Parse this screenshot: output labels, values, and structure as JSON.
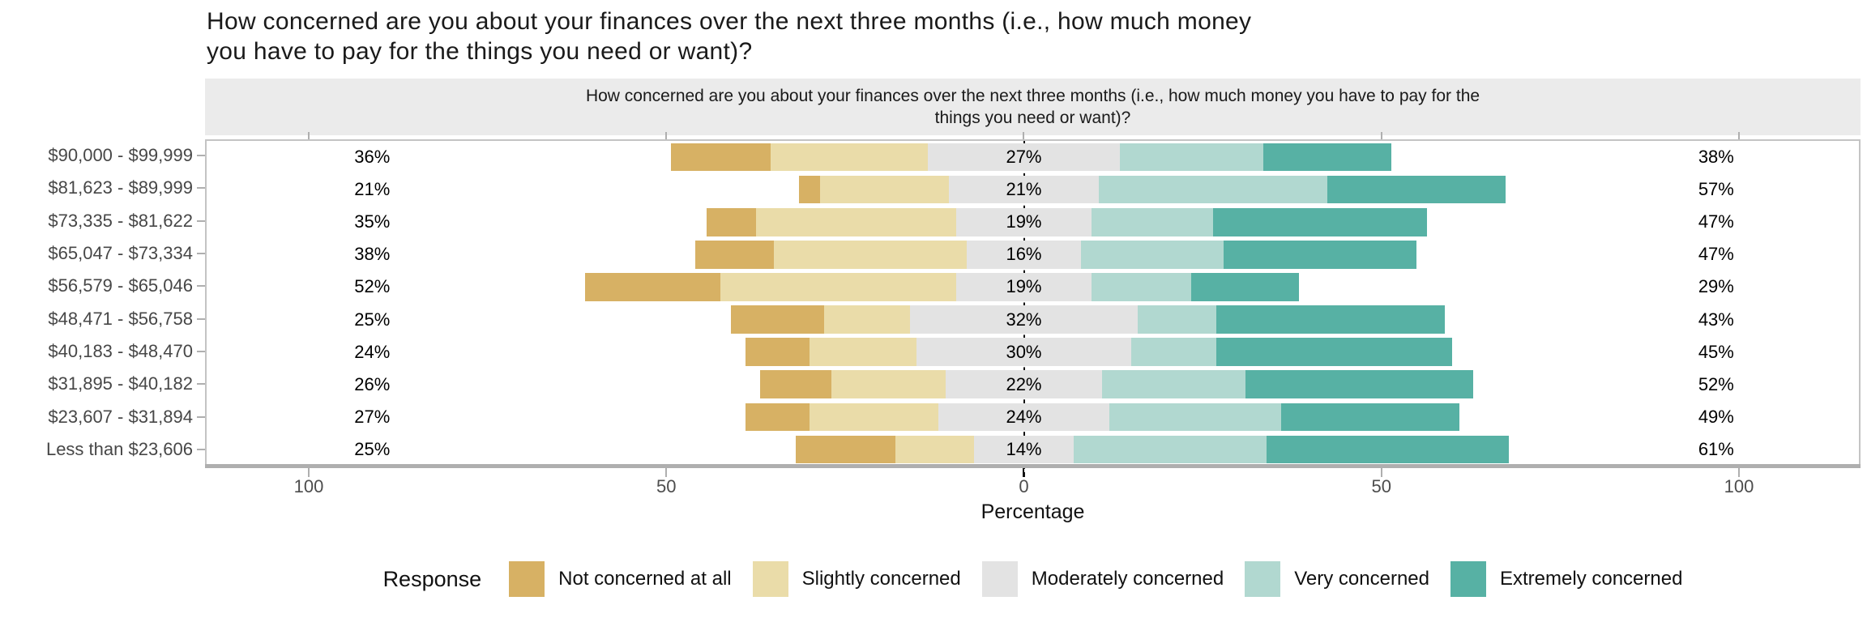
{
  "chart_data": {
    "type": "bar",
    "variant": "diverging-stacked-likert",
    "title_lines": [
      "How concerned are you about your finances over the next three months (i.e., how much money",
      "you have to pay for the things you need or want)?"
    ],
    "strip_title_lines": [
      "How concerned are you about your finances over the next three months (i.e., how much money you have to pay for the",
      "things you need or want)?"
    ],
    "xlabel": "Percentage",
    "x_tick_labels": [
      "100",
      "50",
      "0",
      "50",
      "100"
    ],
    "x_tick_values": [
      -100,
      -50,
      0,
      50,
      100
    ],
    "xlim": [
      -114.5,
      117
    ],
    "grid": false,
    "legend_title": "Response",
    "legend_position": "bottom",
    "categories": [
      "$90,000 - $99,999",
      "$81,623 - $89,999",
      "$73,335 - $81,622",
      "$65,047 - $73,334",
      "$56,579 - $65,046",
      "$48,471 - $56,758",
      "$40,183 - $48,470",
      "$31,895 - $40,182",
      "$23,607 - $31,894",
      "Less than $23,606"
    ],
    "series": [
      {
        "name": "Not concerned at all",
        "color": "#D7B164",
        "values": [
          14,
          3,
          7,
          11,
          19,
          13,
          9,
          10,
          9,
          14
        ]
      },
      {
        "name": "Slightly concerned",
        "color": "#EADCA9",
        "values": [
          22,
          18,
          28,
          27,
          33,
          12,
          15,
          16,
          18,
          11
        ]
      },
      {
        "name": "Moderately concerned",
        "color": "#E3E3E3",
        "values": [
          27,
          21,
          19,
          16,
          19,
          32,
          30,
          22,
          24,
          14
        ]
      },
      {
        "name": "Very concerned",
        "color": "#B1D8D0",
        "values": [
          20,
          32,
          17,
          20,
          14,
          11,
          12,
          20,
          24,
          27
        ]
      },
      {
        "name": "Extremely concerned",
        "color": "#57B1A4",
        "values": [
          18,
          25,
          30,
          27,
          15,
          32,
          33,
          32,
          25,
          34
        ]
      }
    ],
    "annotations": {
      "left_labels": [
        "36%",
        "21%",
        "35%",
        "38%",
        "52%",
        "25%",
        "24%",
        "26%",
        "27%",
        "25%"
      ],
      "mid_labels": [
        "27%",
        "21%",
        "19%",
        "16%",
        "19%",
        "32%",
        "30%",
        "22%",
        "24%",
        "14%"
      ],
      "right_labels": [
        "38%",
        "57%",
        "47%",
        "47%",
        "29%",
        "43%",
        "45%",
        "52%",
        "49%",
        "61%"
      ]
    }
  }
}
